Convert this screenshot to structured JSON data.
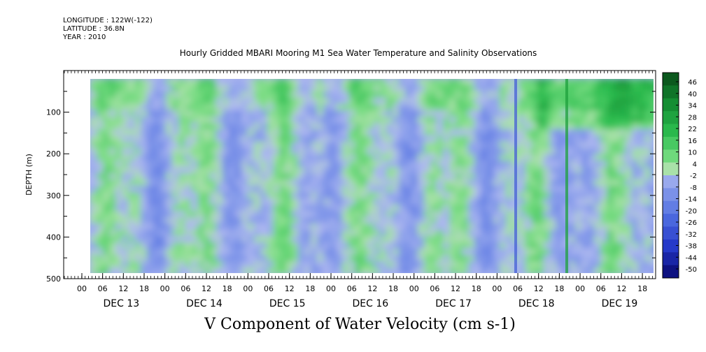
{
  "header": {
    "longitude": "LONGITUDE : 122W(-122)",
    "latitude": "LATITUDE : 36.8N",
    "year": "YEAR : 2010"
  },
  "chart_data": {
    "type": "heatmap",
    "title": "Hourly Gridded MBARI Mooring M1 Sea Water Temperature and Salinity Observations",
    "bottom_title": "V Component of Water Velocity (cm s-1)",
    "ylabel": "DEPTH (m)",
    "ylim": [
      500,
      0
    ],
    "y_ticks": [
      100,
      200,
      300,
      400,
      500
    ],
    "y_tick_labels": [
      "100",
      "200",
      "300",
      "400",
      "500"
    ],
    "x_hour_labels": [
      "00",
      "06",
      "12",
      "18",
      "00",
      "06",
      "12",
      "18",
      "00",
      "06",
      "12",
      "18",
      "00",
      "06",
      "12",
      "18",
      "00",
      "06",
      "12",
      "18",
      "00",
      "06",
      "12",
      "18",
      "00",
      "06",
      "12",
      "18"
    ],
    "x_day_labels": [
      "DEC 13",
      "DEC 14",
      "DEC 15",
      "DEC 16",
      "DEC 17",
      "DEC 18",
      "DEC 19"
    ],
    "colorbar": {
      "levels": [
        46,
        40,
        34,
        28,
        22,
        16,
        10,
        4,
        -2,
        -8,
        -14,
        -20,
        -26,
        -32,
        -38,
        -44,
        -50
      ],
      "labels": [
        "46",
        "40",
        "34",
        "28",
        "22",
        "16",
        "10",
        "4",
        "-2",
        "-8",
        "-14",
        "-20",
        "-26",
        "-32",
        "-38",
        "-44",
        "-50"
      ]
    },
    "columns": [
      {
        "day": "DEC 13",
        "top": "green",
        "mid": "blue-green",
        "bottom": "green"
      },
      {
        "day": "DEC 14",
        "top": "blue",
        "mid": "green",
        "bottom": "blue"
      },
      {
        "day": "DEC 15",
        "top": "blue",
        "mid": "green",
        "bottom": "green"
      },
      {
        "day": "DEC 16",
        "top": "blue",
        "mid": "blue",
        "bottom": "blue-green"
      },
      {
        "day": "DEC 17",
        "top": "green",
        "mid": "green",
        "bottom": "blue"
      },
      {
        "day": "DEC 18",
        "top": "green",
        "mid": "blue-green",
        "bottom": "green"
      },
      {
        "day": "DEC 19",
        "top": "strong green",
        "mid": "blue",
        "bottom": "green"
      }
    ]
  }
}
